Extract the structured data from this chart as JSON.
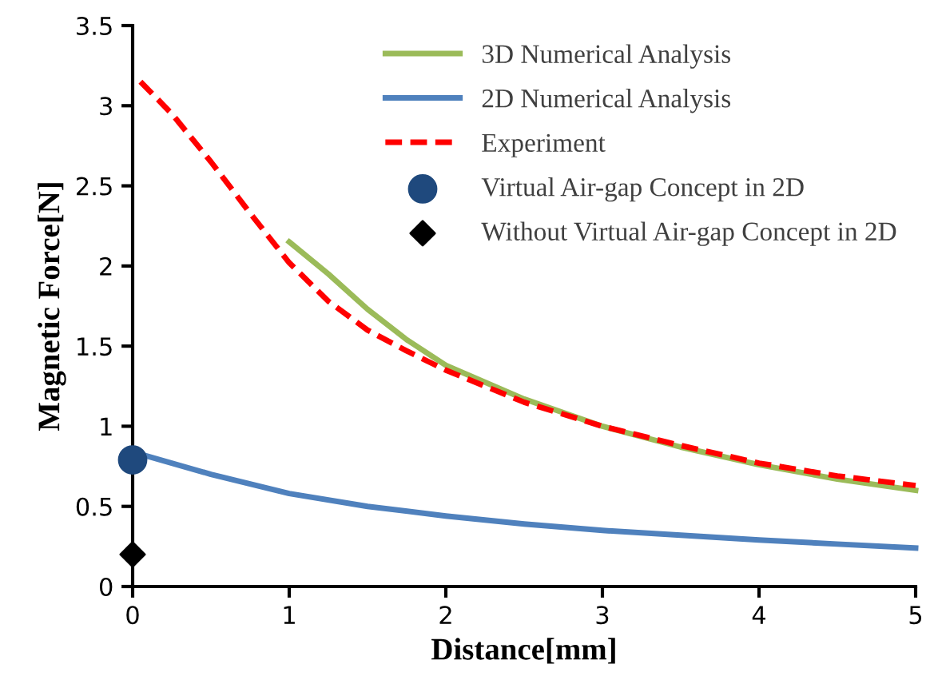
{
  "chart_data": {
    "type": "line",
    "xlabel": "Distance[mm]",
    "ylabel": "Magnetic Force[N]",
    "xlim": [
      0,
      5
    ],
    "ylim": [
      0,
      3.5
    ],
    "xticks": [
      0,
      1,
      2,
      3,
      4,
      5
    ],
    "yticks": [
      0,
      0.5,
      1,
      1.5,
      2,
      2.5,
      3,
      3.5
    ],
    "grid": false,
    "legend": "top right",
    "series": [
      {
        "name": "3D Numerical Analysis",
        "color": "#9bbb59",
        "line_style": "solid",
        "x": [
          1,
          1.25,
          1.5,
          1.75,
          2,
          2.5,
          3,
          3.5,
          4,
          4.5,
          5
        ],
        "values": [
          2.15,
          1.95,
          1.73,
          1.54,
          1.38,
          1.17,
          1.0,
          0.87,
          0.76,
          0.67,
          0.6
        ]
      },
      {
        "name": "2D Numerical Analysis",
        "color": "#4f81bd",
        "line_style": "solid",
        "x": [
          0,
          0.5,
          1,
          1.5,
          2,
          2.5,
          3,
          3.5,
          4,
          4.5,
          5
        ],
        "values": [
          0.84,
          0.7,
          0.58,
          0.5,
          0.44,
          0.39,
          0.35,
          0.32,
          0.29,
          0.265,
          0.24
        ]
      },
      {
        "name": "Experiment",
        "color": "#ff0000",
        "line_style": "dashed",
        "x": [
          0.05,
          0.25,
          0.5,
          0.75,
          1,
          1.25,
          1.5,
          1.75,
          2,
          2.5,
          3,
          3.5,
          4,
          4.5,
          5
        ],
        "values": [
          3.15,
          2.95,
          2.65,
          2.33,
          2.02,
          1.78,
          1.6,
          1.47,
          1.35,
          1.15,
          1.0,
          0.88,
          0.77,
          0.69,
          0.63
        ]
      },
      {
        "name": "Virtual Air-gap Concept in 2D",
        "type": "scatter",
        "marker": "circle",
        "color": "#1f497d",
        "x": [
          0
        ],
        "values": [
          0.79
        ]
      },
      {
        "name": "Without Virtual Air-gap Concept in 2D",
        "type": "scatter",
        "marker": "diamond",
        "color": "#000000",
        "x": [
          0
        ],
        "values": [
          0.2
        ]
      }
    ]
  }
}
